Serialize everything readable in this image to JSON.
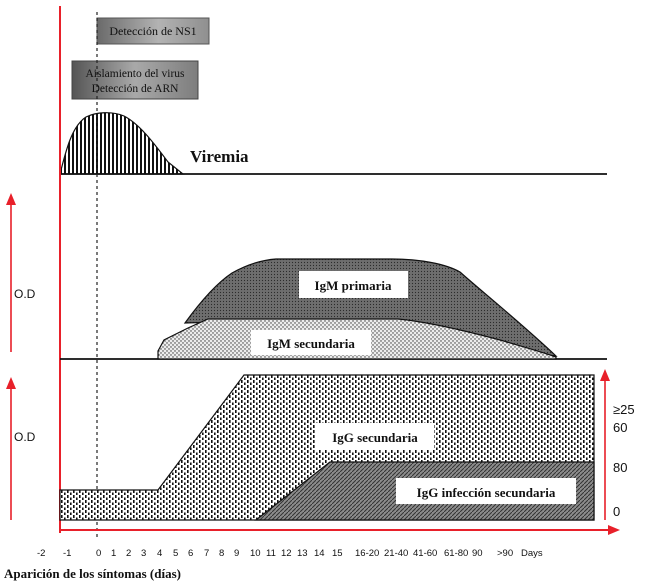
{
  "boxes": {
    "ns1": "Detección de NS1",
    "virus_line1": "Aislamiento del virus",
    "virus_line2": "Detección de ARN"
  },
  "labels": {
    "viremia": "Viremia",
    "igm_primaria": "IgM primaria",
    "igm_secundaria": "IgM secundaria",
    "igg_secundaria": "IgG secundaria",
    "igg_infeccion": "IgG infección secundaria",
    "od_top": "O.D",
    "od_bottom": "O.D"
  },
  "right_axis": {
    "ticks": [
      "≥25",
      "60",
      "80",
      "0"
    ]
  },
  "x_axis": {
    "ticks": [
      "-2",
      "-1",
      "0",
      "1",
      "2",
      "3",
      "4",
      "5",
      "6",
      "7",
      "8",
      "9",
      "10",
      "11",
      "12",
      "13",
      "14",
      "15",
      "16-20",
      "21-40",
      "41-60",
      "61-80",
      "90",
      ">90",
      "Days"
    ],
    "title": "Aparición de los síntomas (días)"
  },
  "colors": {
    "axis_red": "#e8202a",
    "box_gray": "#8a8a8a",
    "dark_fill": "#777777",
    "light_fill": "#e6e6e6"
  }
}
